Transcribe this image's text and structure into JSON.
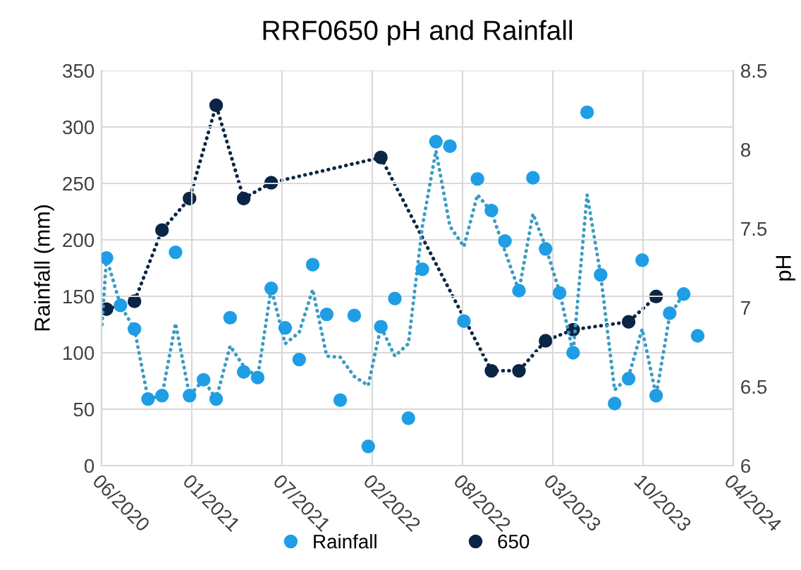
{
  "chart_data": {
    "type": "scatter",
    "title": "RRF0650 pH and Rainfall",
    "ylabel": "Rainfall (mm)",
    "y2label": "pH",
    "xlim": [
      "2020-06-20",
      "2024-04-20"
    ],
    "xticks": [
      {
        "value": "2020-06-20",
        "label": "06/2020"
      },
      {
        "value": "2021-01-06",
        "label": "01/2021"
      },
      {
        "value": "2021-07-25",
        "label": "07/2021"
      },
      {
        "value": "2022-02-10",
        "label": "02/2022"
      },
      {
        "value": "2022-08-29",
        "label": "08/2022"
      },
      {
        "value": "2023-03-17",
        "label": "03/2023"
      },
      {
        "value": "2023-10-03",
        "label": "10/2023"
      },
      {
        "value": "2024-04-20",
        "label": "04/2024"
      }
    ],
    "ylim": [
      0,
      350
    ],
    "yticks": [
      0,
      50,
      100,
      150,
      200,
      250,
      300,
      350
    ],
    "y2lim": [
      6,
      8.5
    ],
    "y2ticks": [
      6,
      6.5,
      7,
      7.5,
      8,
      8.5
    ],
    "grid": true,
    "legend": "bottom",
    "series": [
      {
        "name": "Rainfall",
        "marker": "circle",
        "color": "#1f9ee6",
        "x": [
          "2020-07",
          "2020-08",
          "2020-09",
          "2020-10",
          "2020-11",
          "2020-12",
          "2021-01",
          "2021-02",
          "2021-03",
          "2021-04",
          "2021-05",
          "2021-06",
          "2021-07",
          "2021-08",
          "2021-09",
          "2021-10",
          "2021-11",
          "2021-12",
          "2022-01",
          "2022-02",
          "2022-03",
          "2022-04",
          "2022-05",
          "2022-06",
          "2022-07",
          "2022-08",
          "2022-09",
          "2022-10",
          "2022-11",
          "2022-12",
          "2023-01",
          "2023-02",
          "2023-03",
          "2023-04",
          "2023-05",
          "2023-06",
          "2023-07",
          "2023-08",
          "2023-09",
          "2023-10",
          "2023-11",
          "2023-12",
          "2024-01",
          "2024-02"
        ],
        "values": [
          184,
          142,
          121,
          59,
          62,
          189,
          62,
          76,
          59,
          131,
          83,
          78,
          157,
          122,
          94,
          178,
          134,
          58,
          133,
          17,
          123,
          148,
          42,
          174,
          287,
          283,
          128,
          254,
          226,
          199,
          155,
          255,
          192,
          153,
          100,
          313,
          169,
          55,
          77,
          182,
          62,
          135,
          152,
          115
        ]
      },
      {
        "type": "line",
        "line_style": "dotted",
        "color": "#3b9cc4",
        "x": [
          "2020-06-21",
          "2020-07",
          "2020-08",
          "2020-09",
          "2020-10",
          "2020-11",
          "2020-12",
          "2021-01",
          "2021-02",
          "2021-03",
          "2021-04",
          "2021-05",
          "2021-06",
          "2021-07",
          "2021-08",
          "2021-09",
          "2021-10",
          "2021-11",
          "2021-12",
          "2022-01",
          "2022-02",
          "2022-03",
          "2022-04",
          "2022-05",
          "2022-06",
          "2022-07",
          "2022-08",
          "2022-09",
          "2022-10",
          "2022-11",
          "2022-12",
          "2023-01",
          "2023-02",
          "2023-03",
          "2023-04",
          "2023-05",
          "2023-06",
          "2023-07",
          "2023-08",
          "2023-09",
          "2023-10",
          "2023-11",
          "2023-12",
          "2024-01"
        ],
        "values": [
          125,
          184,
          142,
          121,
          59,
          62,
          126,
          62,
          76,
          59,
          106,
          88,
          78,
          157,
          108,
          118,
          156,
          97,
          96,
          79,
          71,
          123,
          97,
          108,
          212,
          279,
          212,
          194,
          240,
          225,
          190,
          155,
          223,
          194,
          154,
          100,
          240,
          169,
          67,
          79,
          121,
          62,
          133,
          152
        ]
      },
      {
        "name": "650",
        "type": "line",
        "axis": "y2",
        "marker": "circle",
        "line_style": "dotted",
        "color": "#0b2545",
        "x": [
          "2020-07",
          "2020-09",
          "2020-11",
          "2021-01",
          "2021-03",
          "2021-05",
          "2021-07",
          "2022-03",
          "2022-11",
          "2023-01",
          "2023-03",
          "2023-05",
          "2023-09",
          "2023-11"
        ],
        "values": [
          6.99,
          7.04,
          7.49,
          7.69,
          8.28,
          7.69,
          7.79,
          7.95,
          6.6,
          6.6,
          6.79,
          6.86,
          6.91,
          7.07
        ]
      }
    ]
  }
}
